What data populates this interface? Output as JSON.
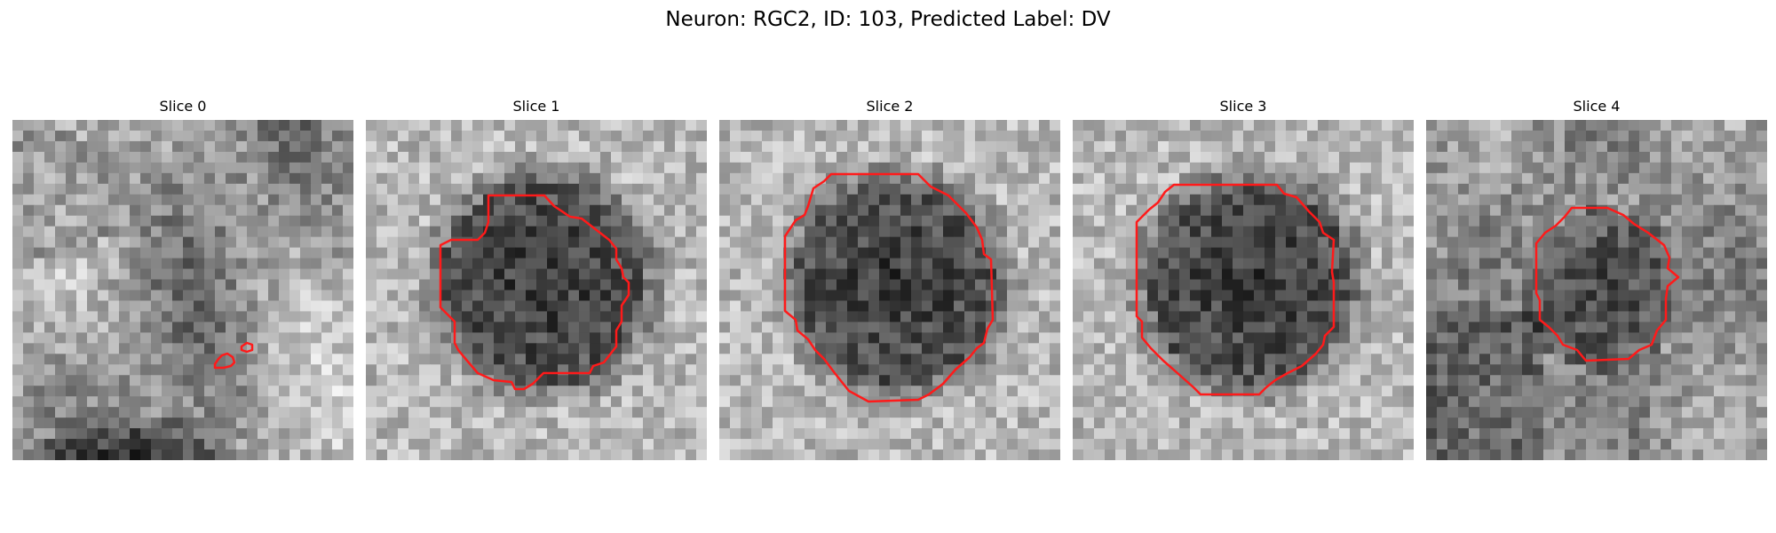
{
  "figure": {
    "title": "Neuron: RGC2, ID: 103, Predicted Label: DV"
  },
  "colors": {
    "contour": "#ff1a1a",
    "background": "#ffffff"
  },
  "panels": [
    {
      "title": "Slice 0"
    },
    {
      "title": "Slice 1"
    },
    {
      "title": "Slice 2"
    },
    {
      "title": "Slice 3"
    },
    {
      "title": "Slice 4"
    }
  ]
}
